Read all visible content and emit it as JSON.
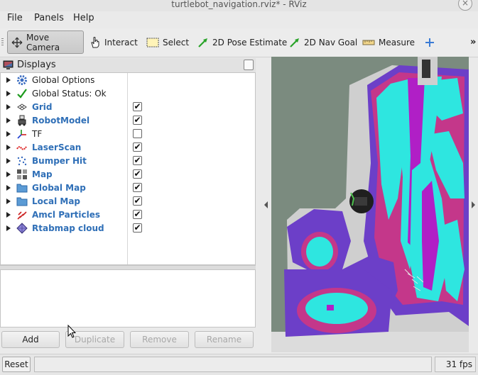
{
  "window": {
    "title": "turtlebot_navigation.rviz* - RViz",
    "close_glyph": "×"
  },
  "menu": [
    "File",
    "Panels",
    "Help"
  ],
  "toolbar": {
    "tools": [
      {
        "label": "Move Camera",
        "icon": "move-camera-icon",
        "active": true
      },
      {
        "label": "Interact",
        "icon": "hand-pointer-icon"
      },
      {
        "label": "Select",
        "icon": "select-box-icon"
      },
      {
        "label": "2D Pose Estimate",
        "icon": "green-arrow-icon"
      },
      {
        "label": "2D Nav Goal",
        "icon": "green-arrow-icon"
      },
      {
        "label": "Measure",
        "icon": "ruler-icon"
      }
    ],
    "more_glyph": "»"
  },
  "displays_panel": {
    "title": "Displays",
    "items": [
      {
        "label": "Global Options",
        "icon": "gear-icon",
        "checkbox": null,
        "style": "plain"
      },
      {
        "label": "Global Status: Ok",
        "icon": "checkmark-icon",
        "checkbox": null,
        "style": "plain"
      },
      {
        "label": "Grid",
        "icon": "grid-icon",
        "checkbox": true,
        "style": "blue"
      },
      {
        "label": "RobotModel",
        "icon": "robot-icon",
        "checkbox": true,
        "style": "blue"
      },
      {
        "label": "TF",
        "icon": "tf-axes-icon",
        "checkbox": false,
        "style": "plain"
      },
      {
        "label": "LaserScan",
        "icon": "laserscan-icon",
        "checkbox": true,
        "style": "blue"
      },
      {
        "label": "Bumper Hit",
        "icon": "bumper-dots-icon",
        "checkbox": true,
        "style": "blue"
      },
      {
        "label": "Map",
        "icon": "map-icon",
        "checkbox": true,
        "style": "blue"
      },
      {
        "label": "Global Map",
        "icon": "folder-icon",
        "checkbox": true,
        "style": "blue"
      },
      {
        "label": "Local Map",
        "icon": "folder-icon",
        "checkbox": true,
        "style": "blue"
      },
      {
        "label": "Amcl Particles",
        "icon": "particles-icon",
        "checkbox": true,
        "style": "blue"
      },
      {
        "label": "Rtabmap cloud",
        "icon": "pointcloud-icon",
        "checkbox": true,
        "style": "blue"
      }
    ],
    "buttons": {
      "add": "Add",
      "duplicate": "Duplicate",
      "remove": "Remove",
      "rename": "Rename"
    }
  },
  "status_bar": {
    "reset": "Reset",
    "fps": "31 fps"
  },
  "colors": {
    "accent_blue": "#2f6fb7",
    "map_cyan": "#2ee6e0",
    "map_magenta": "#c21ec8",
    "map_purple": "#6a3cc8",
    "map_red": "#d8306a"
  }
}
